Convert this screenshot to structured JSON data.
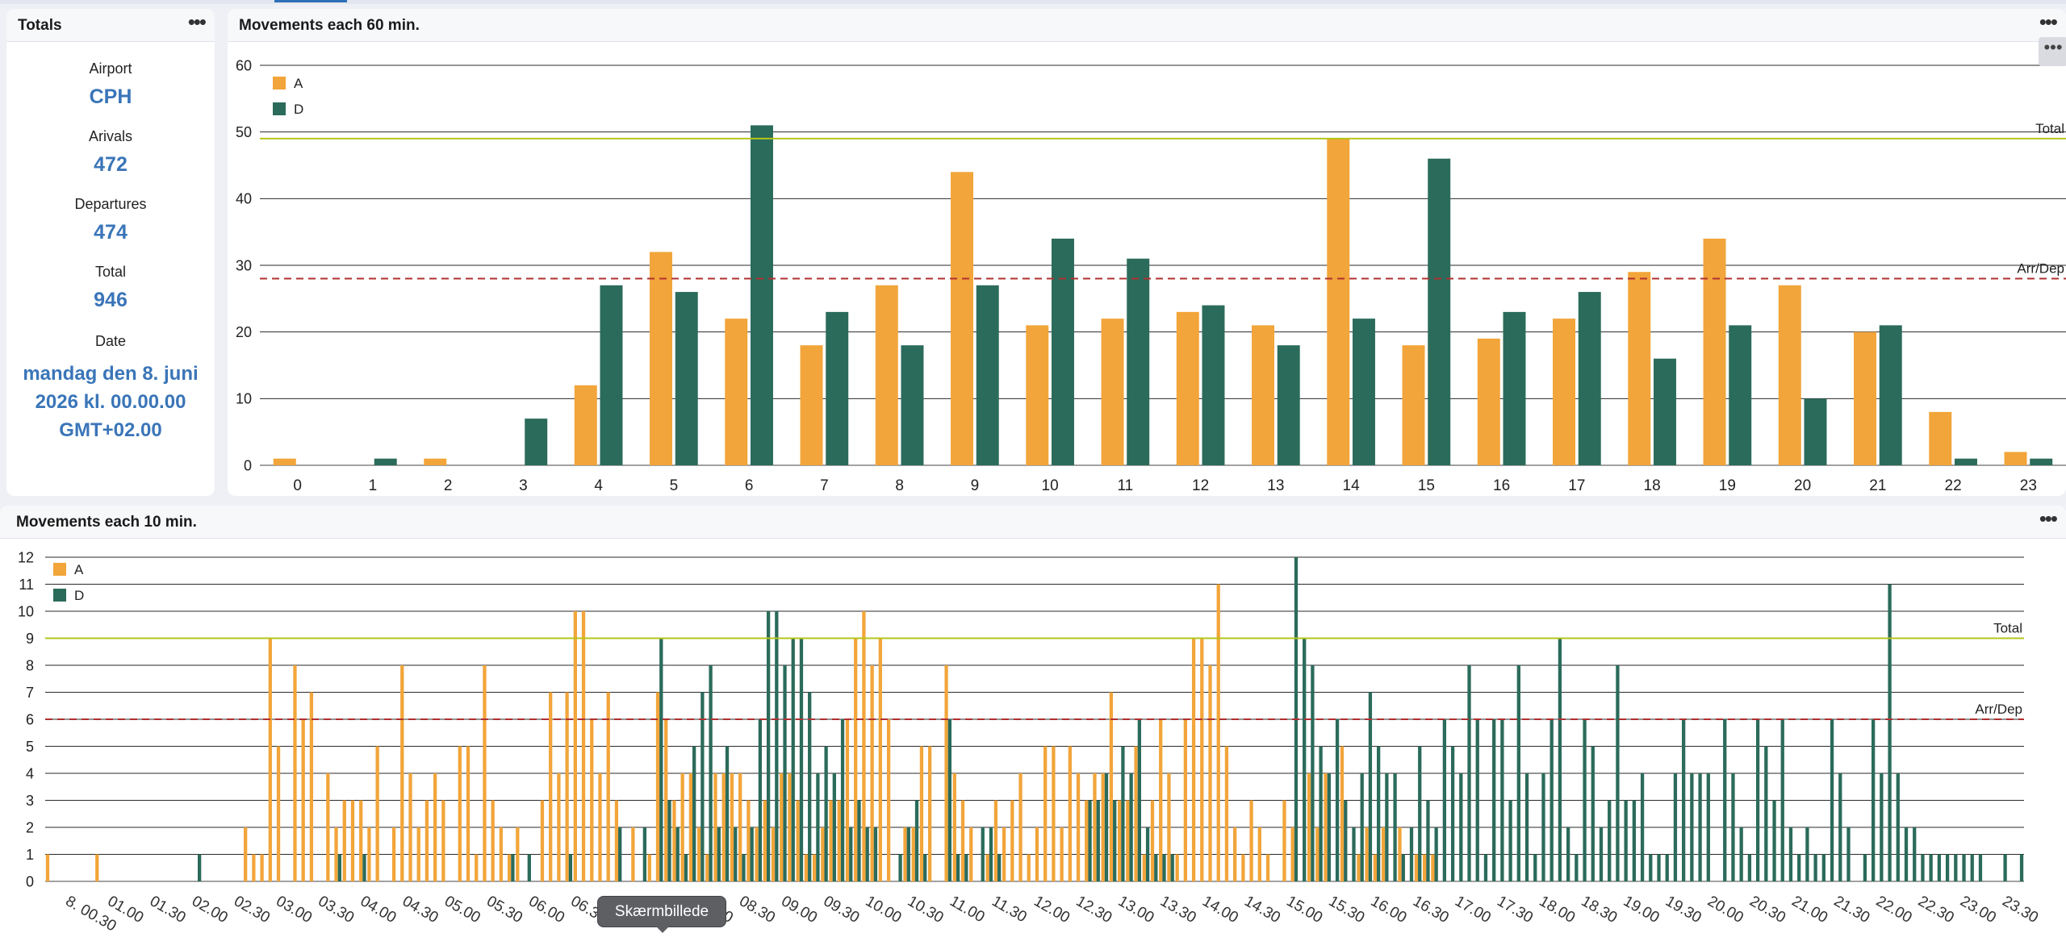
{
  "totals": {
    "title": "Totals",
    "airport_label": "Airport",
    "airport_value": "CPH",
    "arrivals_label": "Arivals",
    "arrivals_value": "472",
    "departures_label": "Departures",
    "departures_value": "474",
    "total_label": "Total",
    "total_value": "946",
    "date_label": "Date",
    "date_value": "mandag den 8. juni 2026 kl. 00.00.00 GMT+02.00"
  },
  "menu_icon": "more-horizontal-icon",
  "tooltip": {
    "text": "Skærmbillede"
  },
  "colors": {
    "arrivals": "#f2a53a",
    "departures": "#2b6b5b",
    "total_line": "#b5c51b",
    "arrdep_line": "#b13030"
  },
  "chart_data": [
    {
      "type": "bar",
      "title": "Movements each 60 min.",
      "categories": [
        "0",
        "1",
        "2",
        "3",
        "4",
        "5",
        "6",
        "7",
        "8",
        "9",
        "10",
        "11",
        "12",
        "13",
        "14",
        "15",
        "16",
        "17",
        "18",
        "19",
        "20",
        "21",
        "22",
        "23"
      ],
      "series": [
        {
          "name": "A",
          "values": [
            1,
            0,
            1,
            0,
            12,
            32,
            22,
            18,
            27,
            44,
            21,
            22,
            23,
            21,
            49,
            18,
            19,
            22,
            29,
            34,
            27,
            20,
            8,
            2
          ]
        },
        {
          "name": "D",
          "values": [
            0,
            1,
            0,
            7,
            27,
            26,
            51,
            23,
            18,
            27,
            34,
            31,
            24,
            18,
            22,
            46,
            23,
            26,
            16,
            21,
            10,
            21,
            1,
            1
          ]
        }
      ],
      "reference_lines": [
        {
          "label": "Total",
          "value": 49
        },
        {
          "label": "Arr/Dep",
          "value": 28,
          "style": "dashed"
        }
      ],
      "ylim": [
        0,
        60
      ],
      "yticks": [
        0,
        10,
        20,
        30,
        40,
        50,
        60
      ],
      "grid": true,
      "legend": "top-left"
    },
    {
      "type": "bar",
      "title": "Movements each 10 min.",
      "x_tick_labels": [
        "8. 00.30",
        "01.00",
        "01.30",
        "02.00",
        "02.30",
        "03.00",
        "03.30",
        "04.00",
        "04.30",
        "05.00",
        "05.30",
        "06.00",
        "06.30",
        "07.00",
        "07.30",
        "08.00",
        "08.30",
        "09.00",
        "09.30",
        "10.00",
        "10.30",
        "11.00",
        "11.30",
        "12.00",
        "12.30",
        "13.00",
        "13.30",
        "14.00",
        "14.30",
        "15.00",
        "15.30",
        "16.00",
        "16.30",
        "17.00",
        "17.30",
        "18.00",
        "18.30",
        "19.00",
        "19.30",
        "20.00",
        "20.30",
        "21.00",
        "21.30",
        "22.00",
        "22.30",
        "23.00",
        "23.30"
      ],
      "series": [
        {
          "name": "A",
          "values": [
            1,
            0,
            0,
            0,
            0,
            0,
            1,
            0,
            0,
            0,
            0,
            0,
            0,
            0,
            0,
            0,
            0,
            0,
            0,
            0,
            0,
            0,
            0,
            0,
            2,
            1,
            1,
            9,
            5,
            0,
            8,
            6,
            7,
            0,
            4,
            2,
            3,
            3,
            3,
            2,
            5,
            0,
            2,
            8,
            4,
            2,
            3,
            4,
            3,
            0,
            5,
            5,
            1,
            8,
            3,
            2,
            1,
            2,
            0,
            0,
            3,
            7,
            4,
            7,
            10,
            10,
            6,
            4,
            7,
            3,
            0,
            2,
            0,
            1,
            7,
            6,
            3,
            4,
            4,
            2,
            1,
            4,
            4,
            4,
            4,
            3,
            2,
            3,
            2,
            4,
            4,
            3,
            1,
            1,
            2,
            3,
            3,
            6,
            9,
            10,
            8,
            9,
            6,
            0,
            2,
            2,
            5,
            5,
            0,
            8,
            4,
            3,
            2,
            0,
            1,
            3,
            2,
            3,
            4,
            1,
            2,
            5,
            5,
            2,
            5,
            4,
            3,
            4,
            4,
            7,
            3,
            3,
            5,
            1,
            3,
            6,
            4,
            1,
            6,
            9,
            9,
            8,
            11,
            5,
            2,
            1,
            3,
            2,
            1,
            0,
            3,
            2,
            0,
            4,
            2,
            4,
            0,
            5,
            0,
            1,
            2,
            1,
            2,
            0,
            2,
            0,
            1,
            1,
            1
          ]
        },
        {
          "name": "D",
          "values": [
            0,
            0,
            0,
            0,
            0,
            0,
            0,
            0,
            0,
            0,
            0,
            0,
            0,
            0,
            0,
            0,
            0,
            0,
            1,
            0,
            0,
            0,
            0,
            0,
            0,
            0,
            0,
            0,
            0,
            0,
            0,
            0,
            0,
            0,
            0,
            1,
            0,
            0,
            1,
            0,
            0,
            0,
            0,
            0,
            0,
            0,
            0,
            0,
            0,
            0,
            0,
            0,
            0,
            0,
            0,
            0,
            1,
            0,
            1,
            0,
            0,
            0,
            0,
            1,
            0,
            0,
            0,
            0,
            0,
            2,
            0,
            0,
            2,
            0,
            9,
            3,
            2,
            1,
            5,
            7,
            8,
            2,
            5,
            2,
            1,
            2,
            6,
            10,
            10,
            8,
            9,
            9,
            7,
            4,
            5,
            4,
            6,
            2,
            3,
            2,
            2,
            0,
            0,
            1,
            2,
            3,
            1,
            0,
            0,
            6,
            1,
            1,
            0,
            2,
            2,
            1,
            0,
            0,
            0,
            0,
            0,
            0,
            0,
            0,
            0,
            0,
            3,
            3,
            4,
            3,
            5,
            4,
            6,
            2,
            1,
            1,
            1,
            0,
            0,
            0,
            0,
            0,
            0,
            0,
            0,
            0,
            0,
            0,
            0,
            0,
            0,
            12,
            9,
            8,
            5,
            4,
            6,
            3,
            2,
            4,
            7,
            5,
            4,
            4,
            1,
            2,
            5,
            3,
            2,
            6,
            5,
            4,
            8,
            6,
            1,
            6,
            6,
            3,
            8,
            4,
            1,
            4,
            6,
            9,
            2,
            1,
            6,
            5,
            2,
            3,
            8,
            3,
            3,
            4,
            1,
            1,
            1,
            4,
            6,
            4,
            4,
            4,
            0,
            6,
            4,
            2,
            1,
            6,
            5,
            3,
            6,
            2,
            1,
            2,
            1,
            1,
            6,
            4,
            2,
            0,
            1,
            6,
            4,
            11,
            4,
            2,
            2,
            1,
            1,
            1,
            1,
            1,
            1,
            1,
            1,
            0,
            0,
            1,
            0,
            1
          ]
        }
      ],
      "reference_lines": [
        {
          "label": "Total",
          "value": 9
        },
        {
          "label": "Arr/Dep",
          "value": 6,
          "style": "dashed"
        }
      ],
      "ylim": [
        0,
        12
      ],
      "yticks": [
        0,
        1,
        2,
        3,
        4,
        5,
        6,
        7,
        8,
        9,
        10,
        11,
        12
      ],
      "grid": true,
      "legend": "top-left"
    }
  ]
}
